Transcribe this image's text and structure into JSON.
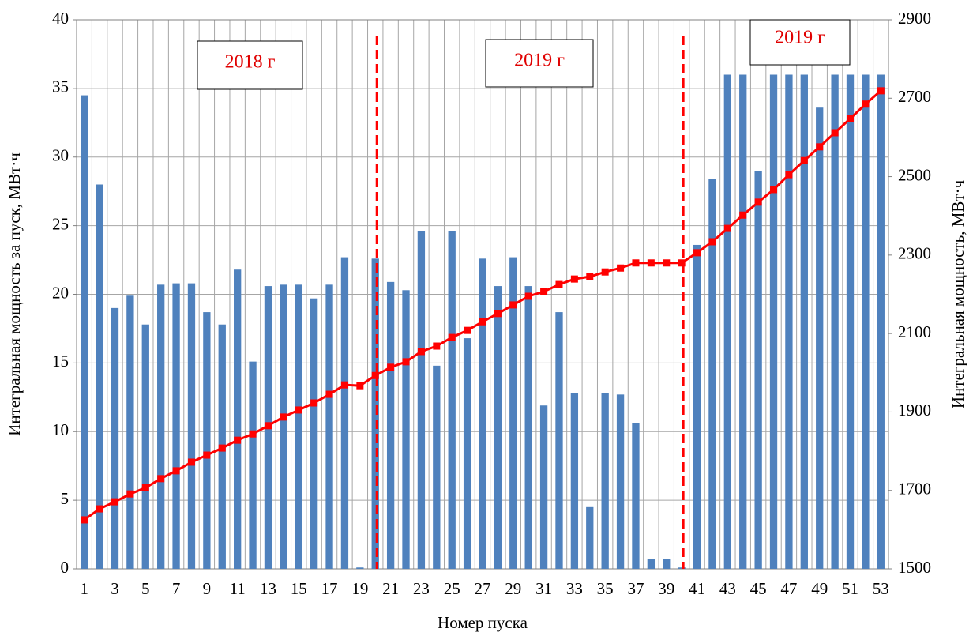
{
  "chart_data": {
    "type": "bar-line",
    "x_label": "Номер пуска",
    "y_label": "Интегральная мощность за пуск, МВт·ч",
    "y2_label": "Интегральная мощность, МВт·ч",
    "categories": [
      "1",
      null,
      "3",
      null,
      "5",
      null,
      "7",
      null,
      "9",
      null,
      "11",
      null,
      "13",
      null,
      "15",
      null,
      "17",
      null,
      "19",
      null,
      "21",
      null,
      "23",
      null,
      "25",
      null,
      "27",
      null,
      "29",
      null,
      "31",
      null,
      "33",
      null,
      "35",
      null,
      "37",
      null,
      "39",
      null,
      "41",
      null,
      "43",
      null,
      "45",
      null,
      "47",
      null,
      "49",
      null,
      "51",
      null,
      "53"
    ],
    "series": [
      {
        "type": "bar",
        "color": "#4f81bd",
        "values": [
          34.5,
          28,
          19,
          19.9,
          17.8,
          20.7,
          20.8,
          20.8,
          18.7,
          17.8,
          21.8,
          15.1,
          20.6,
          20.7,
          20.7,
          19.7,
          20.7,
          22.7,
          0.1,
          22.6,
          20.9,
          20.3,
          24.6,
          14.8,
          24.6,
          16.8,
          22.6,
          20.6,
          22.7,
          20.6,
          11.9,
          18.7,
          12.8,
          4.5,
          12.8,
          12.7,
          10.6,
          0.7,
          0.7,
          0.1,
          23.6,
          28.4,
          36,
          36,
          29,
          36,
          36,
          36,
          33.6,
          36,
          36,
          36,
          36
        ]
      },
      {
        "type": "line",
        "axis": "y2",
        "color": "#ff0000",
        "values": [
          1625,
          1653,
          1671,
          1691,
          1707,
          1730,
          1750,
          1772,
          1790,
          1808,
          1828,
          1844,
          1865,
          1887,
          1905,
          1923,
          1945,
          1969,
          1967,
          1993,
          2014,
          2028,
          2054,
          2068,
          2090,
          2108,
          2130,
          2151,
          2173,
          2195,
          2207,
          2225,
          2239,
          2245,
          2257,
          2267,
          2280,
          2280,
          2280,
          2280,
          2306,
          2334,
          2368,
          2402,
          2435,
          2467,
          2505,
          2541,
          2576,
          2612,
          2648,
          2685,
          2719
        ]
      }
    ],
    "ylim": [
      0,
      40
    ],
    "yticks": [
      0,
      5,
      10,
      15,
      20,
      25,
      30,
      35,
      40
    ],
    "y2lim": [
      1500,
      2900
    ],
    "y2ticks": [
      1500,
      1700,
      1900,
      2100,
      2300,
      2500,
      2700,
      2900
    ],
    "grid": true,
    "dividers": [
      20,
      40
    ],
    "annotations": [
      "2018 г",
      "2019 г",
      "2019 г"
    ]
  }
}
